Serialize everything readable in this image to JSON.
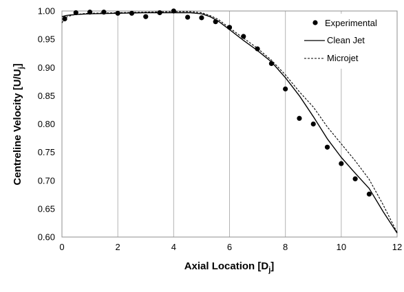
{
  "chart_data": {
    "type": "line",
    "xlabel": "Axial Location [D",
    "xlabel_sub": "j",
    "xlabel_end": "]",
    "ylabel": "Centreline Velocity [U/U",
    "ylabel_sub": "j",
    "ylabel_end": "]",
    "xlim": [
      0,
      12
    ],
    "ylim": [
      0.6,
      1.0
    ],
    "xticks": [
      "0",
      "2",
      "4",
      "6",
      "8",
      "10",
      "12"
    ],
    "yticks": [
      "0.60",
      "0.65",
      "0.70",
      "0.75",
      "0.80",
      "0.85",
      "0.90",
      "0.95",
      "1.00"
    ],
    "grid": "vertical",
    "legend_position": "top-right",
    "series": [
      {
        "name": "Experimental",
        "style": "markers",
        "x": [
          0.1,
          0.5,
          1.0,
          1.5,
          2.0,
          2.5,
          3.0,
          3.5,
          4.0,
          4.5,
          5.0,
          5.5,
          6.0,
          6.5,
          7.0,
          7.5,
          8.0,
          8.5,
          9.0,
          9.5,
          10.0,
          10.5,
          11.0
        ],
        "y": [
          0.986,
          0.997,
          0.998,
          0.998,
          0.996,
          0.996,
          0.99,
          0.997,
          1.0,
          0.989,
          0.988,
          0.981,
          0.971,
          0.955,
          0.933,
          0.907,
          0.862,
          0.81,
          0.8,
          0.759,
          0.73,
          0.703,
          0.676
        ]
      },
      {
        "name": "Clean Jet",
        "style": "solid",
        "x": [
          0.0,
          0.15,
          0.3,
          0.6,
          1.0,
          2.0,
          3.0,
          4.0,
          4.6,
          5.0,
          5.3,
          5.6,
          6.0,
          6.5,
          7.0,
          7.5,
          8.0,
          8.5,
          9.0,
          9.5,
          10.0,
          10.5,
          11.0,
          11.5,
          12.0
        ],
        "y": [
          0.99,
          0.992,
          0.993,
          0.994,
          0.995,
          0.996,
          0.997,
          0.997,
          0.997,
          0.995,
          0.99,
          0.982,
          0.967,
          0.948,
          0.93,
          0.91,
          0.882,
          0.85,
          0.813,
          0.774,
          0.741,
          0.713,
          0.686,
          0.645,
          0.607
        ]
      },
      {
        "name": "Microjet",
        "style": "dashed",
        "x": [
          0.0,
          0.1,
          0.2,
          0.4,
          0.7,
          1.0,
          2.0,
          3.0,
          4.0,
          4.6,
          5.0,
          5.3,
          5.6,
          6.0,
          6.5,
          7.0,
          7.5,
          8.0,
          8.5,
          9.0,
          9.5,
          10.0,
          10.5,
          11.0,
          11.5,
          12.0
        ],
        "y": [
          0.979,
          0.987,
          0.99,
          0.993,
          0.995,
          0.996,
          0.997,
          0.998,
          0.999,
          0.999,
          0.997,
          0.992,
          0.985,
          0.97,
          0.952,
          0.934,
          0.913,
          0.887,
          0.857,
          0.83,
          0.795,
          0.765,
          0.735,
          0.702,
          0.657,
          0.608
        ]
      }
    ]
  }
}
